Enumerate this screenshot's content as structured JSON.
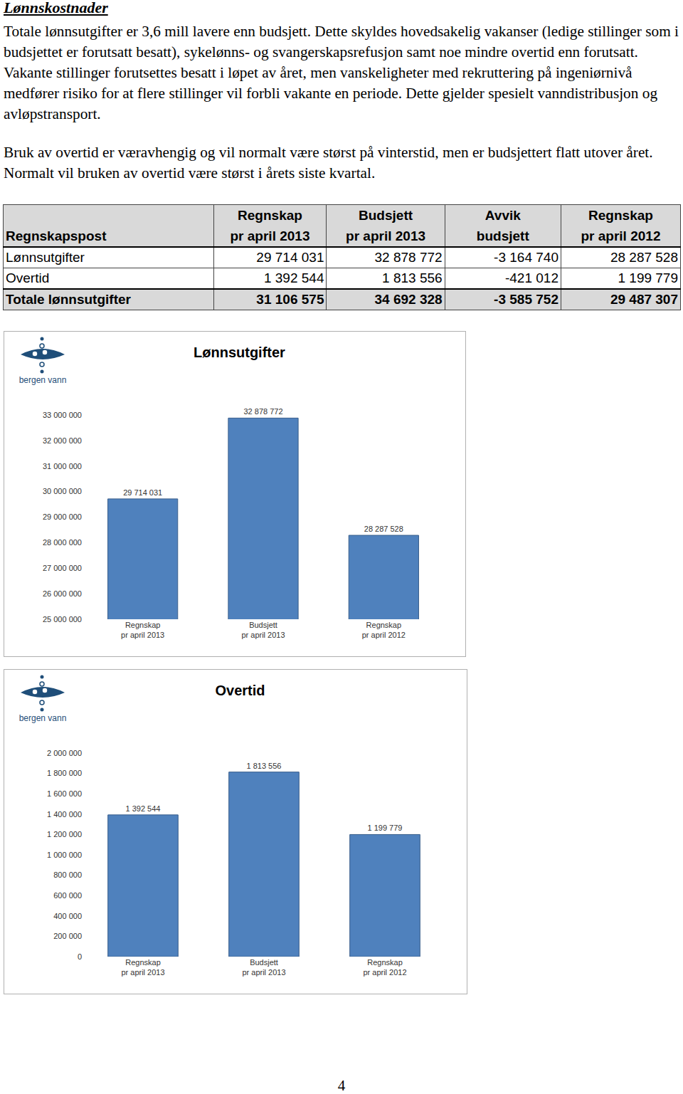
{
  "heading": "Lønnskostnader",
  "paragraphs": [
    "Totale lønnsutgifter er 3,6 mill lavere enn budsjett. Dette skyldes hovedsakelig vakanser (ledige stillinger som i budsjettet er forutsatt besatt), sykelønns- og svangerskapsrefusjon samt noe mindre overtid enn forutsatt. Vakante stillinger forutsettes besatt i løpet av året, men vanskeligheter med rekruttering på ingeniørnivå medfører risiko for at flere stillinger vil forbli vakante en periode. Dette gjelder spesielt vanndistribusjon og avløpstransport.",
    "Bruk av overtid er væravhengig og vil normalt være størst på vinterstid, men er budsjettert flatt utover året. Normalt vil bruken av overtid være størst i årets siste kvartal."
  ],
  "table": {
    "header": [
      "Regnskapspost",
      "Regnskap\npr april 2013",
      "Budsjett\npr april 2013",
      "Avvik\nbudsjett",
      "Regnskap\npr april 2012"
    ],
    "rows": [
      [
        "Lønnsutgifter",
        "29 714 031",
        "32 878 772",
        "-3 164 740",
        "28 287 528"
      ],
      [
        "Overtid",
        "1 392 544",
        "1 813 556",
        "-421 012",
        "1 199 779"
      ],
      [
        "Totale lønnsutgifter",
        "31 106 575",
        "34 692 328",
        "-3 585 752",
        "29 487 307"
      ]
    ]
  },
  "logo": "bergen vann",
  "chart_data": [
    {
      "type": "bar",
      "title": "Lønnsutgifter",
      "categories": [
        "Regnskap\npr april 2013",
        "Budsjett\npr april 2013",
        "Regnskap\npr april 2012"
      ],
      "values": [
        29714031,
        32878772,
        28287528
      ],
      "value_labels": [
        "29 714 031",
        "32 878 772",
        "28 287 528"
      ],
      "color": "#4f81bd",
      "data_labels": true,
      "grid": false,
      "ylim": [
        25000000,
        33000000
      ],
      "yticks": [
        {
          "value": 25000000,
          "label": "25 000 000"
        },
        {
          "value": 26000000,
          "label": "26 000 000"
        },
        {
          "value": 27000000,
          "label": "27 000 000"
        },
        {
          "value": 28000000,
          "label": "28 000 000"
        },
        {
          "value": 29000000,
          "label": "29 000 000"
        },
        {
          "value": 30000000,
          "label": "30 000 000"
        },
        {
          "value": 31000000,
          "label": "31 000 000"
        },
        {
          "value": 32000000,
          "label": "32 000 000"
        },
        {
          "value": 33000000,
          "label": "33 000 000"
        }
      ]
    },
    {
      "type": "bar",
      "title": "Overtid",
      "categories": [
        "Regnskap\npr april 2013",
        "Budsjett\npr april 2013",
        "Regnskap\npr april 2012"
      ],
      "values": [
        1392544,
        1813556,
        1199779
      ],
      "value_labels": [
        "1 392 544",
        "1 813 556",
        "1 199 779"
      ],
      "color": "#4f81bd",
      "data_labels": true,
      "grid": false,
      "ylim": [
        0,
        2000000
      ],
      "yticks": [
        0,
        {
          "value": 200000,
          "label": "200 000"
        },
        {
          "value": 400000,
          "label": "400 000"
        },
        {
          "value": 600000,
          "label": "600 000"
        },
        {
          "value": 800000,
          "label": "800 000"
        },
        {
          "value": 1000000,
          "label": "1 000 000"
        },
        {
          "value": 1200000,
          "label": "1 200 000"
        },
        {
          "value": 1400000,
          "label": "1 400 000"
        },
        {
          "value": 1600000,
          "label": "1 600 000"
        },
        {
          "value": 1800000,
          "label": "1 800 000"
        },
        {
          "value": 2000000,
          "label": "2 000 000"
        }
      ]
    }
  ],
  "page_number": "4"
}
